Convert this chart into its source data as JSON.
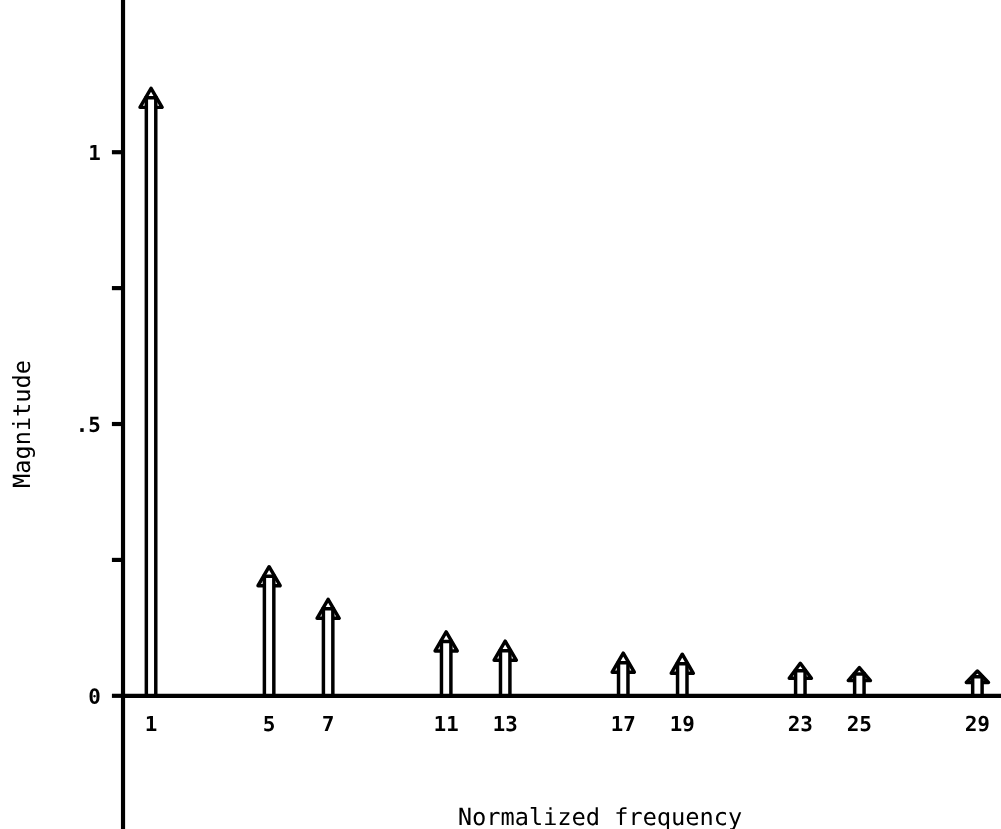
{
  "chart_data": {
    "type": "bar",
    "xlabel": "Normalized frequency",
    "ylabel": "Magnitude",
    "x": [
      1,
      5,
      7,
      11,
      13,
      17,
      19,
      23,
      25,
      29
    ],
    "values": [
      1.1,
      0.22,
      0.16,
      0.1,
      0.083,
      0.061,
      0.059,
      0.046,
      0.04,
      0.035
    ],
    "color": "#ffffff",
    "xlim": [
      0.05,
      29.8
    ],
    "ylim": [
      -0.245,
      1.28
    ],
    "xticks": [
      1,
      5,
      7,
      11,
      13,
      17,
      19,
      23,
      25,
      29
    ],
    "yticks": [
      {
        "value": 0,
        "label": "0"
      },
      {
        "value": 0.25,
        "label": null
      },
      {
        "value": 0.5,
        "label": ".5"
      },
      {
        "value": 0.75,
        "label": null
      },
      {
        "value": 1,
        "label": "1"
      }
    ],
    "grid": false,
    "legend": false
  }
}
